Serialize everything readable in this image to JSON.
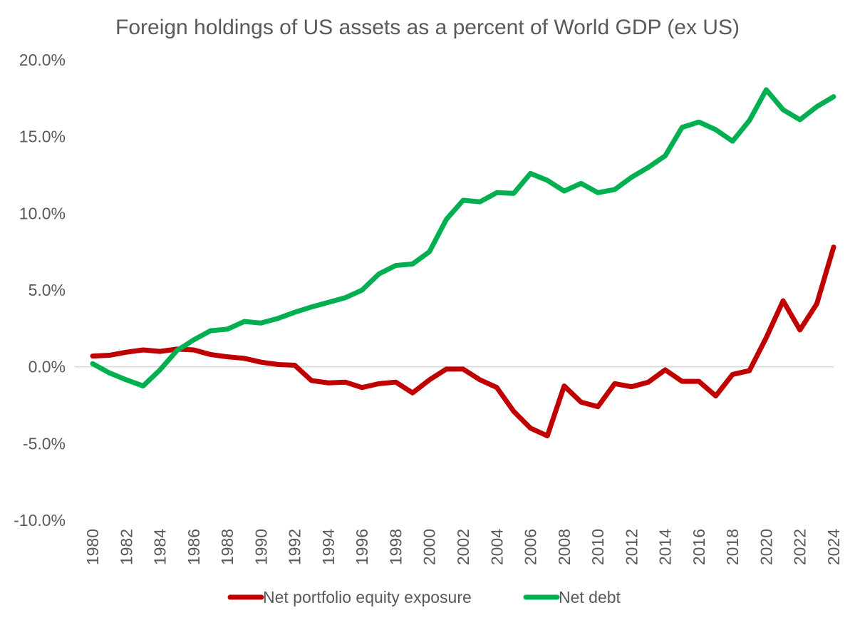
{
  "chart_data": {
    "type": "line",
    "title": "Foreign holdings of US assets as a percent of World GDP (ex US)",
    "xlabel": "",
    "ylabel": "",
    "ylim": [
      -10,
      20
    ],
    "yticks": [
      -10,
      -5,
      0,
      5,
      10,
      15,
      20
    ],
    "ytick_labels": [
      "-10.0%",
      "-5.0%",
      "0.0%",
      "5.0%",
      "10.0%",
      "15.0%",
      "20.0%"
    ],
    "x": [
      1980,
      1981,
      1982,
      1983,
      1984,
      1985,
      1986,
      1987,
      1988,
      1989,
      1990,
      1991,
      1992,
      1993,
      1994,
      1995,
      1996,
      1997,
      1998,
      1999,
      2000,
      2001,
      2002,
      2003,
      2004,
      2005,
      2006,
      2007,
      2008,
      2009,
      2010,
      2011,
      2012,
      2013,
      2014,
      2015,
      2016,
      2017,
      2018,
      2019,
      2020,
      2021,
      2022,
      2023,
      2024
    ],
    "xtick_labels": [
      "1980",
      "1982",
      "1984",
      "1986",
      "1988",
      "1990",
      "1992",
      "1994",
      "1996",
      "1998",
      "2000",
      "2002",
      "2004",
      "2006",
      "2008",
      "2010",
      "2012",
      "2014",
      "2016",
      "2018",
      "2020",
      "2022",
      "2024"
    ],
    "series": [
      {
        "name": "Net portfolio equity exposure",
        "color": "#C00000",
        "values": [
          0.7,
          0.75,
          0.95,
          1.1,
          1.0,
          1.15,
          1.1,
          0.8,
          0.65,
          0.55,
          0.3,
          0.15,
          0.1,
          -0.9,
          -1.05,
          -1.0,
          -1.35,
          -1.1,
          -1.0,
          -1.7,
          -0.85,
          -0.15,
          -0.15,
          -0.85,
          -1.35,
          -2.9,
          -4.0,
          -4.5,
          -1.25,
          -2.3,
          -2.6,
          -1.1,
          -1.3,
          -1.0,
          -0.2,
          -0.95,
          -0.95,
          -1.9,
          -0.5,
          -0.25,
          1.9,
          4.3,
          2.4,
          4.1,
          7.8
        ]
      },
      {
        "name": "Net debt",
        "color": "#00B050",
        "values": [
          0.2,
          -0.4,
          -0.85,
          -1.25,
          -0.2,
          1.05,
          1.75,
          2.35,
          2.45,
          2.95,
          2.85,
          3.15,
          3.55,
          3.9,
          4.2,
          4.5,
          5.0,
          6.05,
          6.6,
          6.7,
          7.5,
          9.6,
          10.85,
          10.75,
          11.35,
          11.3,
          12.6,
          12.15,
          11.45,
          11.95,
          11.35,
          11.55,
          12.35,
          13.0,
          13.75,
          15.6,
          15.95,
          15.45,
          14.7,
          16.05,
          18.05,
          16.75,
          16.1,
          16.95,
          17.6
        ]
      }
    ],
    "legend_position": "bottom",
    "grid": false
  }
}
